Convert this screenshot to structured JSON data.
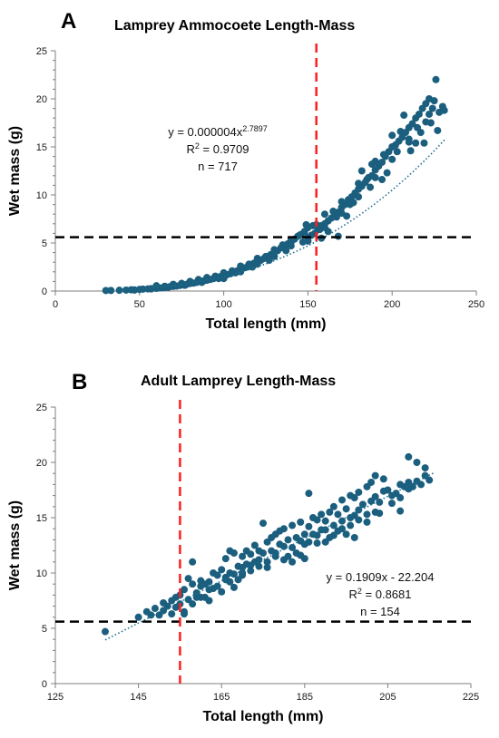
{
  "colors": {
    "points": "#1b5e7e",
    "trend": "#1b6f8f",
    "red_line": "#ff1f1f",
    "black_line": "#000000",
    "axis": "#7f7f7f"
  },
  "chart_data": [
    {
      "panel": "A",
      "type": "scatter",
      "title": "Lamprey Ammocoete Length-Mass",
      "xlabel": "Total length (mm)",
      "ylabel": "Wet mass (g)",
      "xlim": [
        0,
        250
      ],
      "ylim": [
        0,
        25
      ],
      "xticks": [
        0,
        50,
        100,
        150,
        200,
        250
      ],
      "yticks": [
        0,
        5,
        10,
        15,
        20,
        25
      ],
      "grid": false,
      "trendline": {
        "type": "power",
        "a": 4e-06,
        "b": 2.7897,
        "x_range": [
          30,
          232
        ],
        "style": "dotted"
      },
      "equation": {
        "base": "y = 0.000004x",
        "exponent": "2.7897"
      },
      "r2": {
        "prefix": "R",
        "sup": "2",
        "suffix": " = 0.9709"
      },
      "n_label": "n = 717",
      "vline_x": 155,
      "hline_y": 5.6,
      "points": [
        [
          30,
          0.05
        ],
        [
          33,
          0.06
        ],
        [
          38,
          0.08
        ],
        [
          42,
          0.1
        ],
        [
          45,
          0.13
        ],
        [
          47,
          0.12
        ],
        [
          50,
          0.16
        ],
        [
          52,
          0.2
        ],
        [
          55,
          0.22
        ],
        [
          57,
          0.25
        ],
        [
          60,
          0.28
        ],
        [
          62,
          0.32
        ],
        [
          64,
          0.35
        ],
        [
          66,
          0.4
        ],
        [
          68,
          0.45
        ],
        [
          70,
          0.48
        ],
        [
          72,
          0.52
        ],
        [
          74,
          0.58
        ],
        [
          76,
          0.63
        ],
        [
          78,
          0.7
        ],
        [
          80,
          0.78
        ],
        [
          82,
          0.82
        ],
        [
          84,
          0.9
        ],
        [
          86,
          0.98
        ],
        [
          88,
          1.05
        ],
        [
          90,
          1.12
        ],
        [
          92,
          1.2
        ],
        [
          94,
          1.3
        ],
        [
          96,
          1.4
        ],
        [
          98,
          1.5
        ],
        [
          100,
          1.6
        ],
        [
          102,
          1.7
        ],
        [
          104,
          1.8
        ],
        [
          106,
          1.95
        ],
        [
          108,
          2.1
        ],
        [
          110,
          2.25
        ],
        [
          112,
          2.4
        ],
        [
          114,
          2.5
        ],
        [
          116,
          2.7
        ],
        [
          118,
          2.9
        ],
        [
          120,
          3.05
        ],
        [
          122,
          3.2
        ],
        [
          124,
          3.4
        ],
        [
          126,
          3.6
        ],
        [
          128,
          3.8
        ],
        [
          130,
          4.0
        ],
        [
          132,
          4.2
        ],
        [
          134,
          4.5
        ],
        [
          136,
          4.7
        ],
        [
          138,
          4.9
        ],
        [
          140,
          5.1
        ],
        [
          142,
          5.4
        ],
        [
          144,
          5.7
        ],
        [
          146,
          5.9
        ],
        [
          148,
          6.2
        ],
        [
          150,
          5.6
        ],
        [
          152,
          5.8
        ],
        [
          154,
          6.0
        ],
        [
          156,
          6.4
        ],
        [
          158,
          6.8
        ],
        [
          160,
          7.0
        ],
        [
          162,
          7.3
        ],
        [
          164,
          7.6
        ],
        [
          166,
          8.0
        ],
        [
          168,
          8.2
        ],
        [
          170,
          8.7
        ],
        [
          172,
          9.0
        ],
        [
          174,
          9.5
        ],
        [
          176,
          9.8
        ],
        [
          178,
          10.2
        ],
        [
          180,
          10.6
        ],
        [
          182,
          10.9
        ],
        [
          184,
          11.3
        ],
        [
          186,
          11.8
        ],
        [
          188,
          12.0
        ],
        [
          190,
          12.6
        ],
        [
          192,
          13.0
        ],
        [
          194,
          13.4
        ],
        [
          196,
          14.0
        ],
        [
          198,
          14.5
        ],
        [
          200,
          15.0
        ],
        [
          202,
          15.2
        ],
        [
          204,
          15.6
        ],
        [
          206,
          16.0
        ],
        [
          208,
          16.5
        ],
        [
          210,
          17.0
        ],
        [
          212,
          17.4
        ],
        [
          214,
          18.0
        ],
        [
          216,
          18.4
        ],
        [
          218,
          19.0
        ],
        [
          220,
          19.5
        ],
        [
          222,
          20.0
        ],
        [
          224,
          19.0
        ],
        [
          226,
          22.0
        ],
        [
          228,
          18.6
        ],
        [
          230,
          19.2
        ],
        [
          231,
          18.8
        ],
        [
          60,
          0.55
        ],
        [
          65,
          0.5
        ],
        [
          70,
          0.7
        ],
        [
          75,
          0.8
        ],
        [
          80,
          1.0
        ],
        [
          85,
          1.2
        ],
        [
          90,
          1.4
        ],
        [
          95,
          1.55
        ],
        [
          100,
          1.9
        ],
        [
          105,
          2.1
        ],
        [
          110,
          2.6
        ],
        [
          115,
          2.8
        ],
        [
          120,
          3.4
        ],
        [
          125,
          3.6
        ],
        [
          130,
          4.3
        ],
        [
          135,
          4.8
        ],
        [
          140,
          5.3
        ],
        [
          145,
          5.8
        ],
        [
          150,
          6.6
        ],
        [
          155,
          6.9
        ],
        [
          160,
          8.0
        ],
        [
          165,
          8.3
        ],
        [
          170,
          9.3
        ],
        [
          175,
          9.0
        ],
        [
          180,
          11.2
        ],
        [
          185,
          11.6
        ],
        [
          190,
          13.5
        ],
        [
          195,
          14.2
        ],
        [
          200,
          16.2
        ],
        [
          205,
          16.6
        ],
        [
          210,
          15.8
        ],
        [
          215,
          17.0
        ],
        [
          219,
          15.4
        ],
        [
          223,
          17.5
        ],
        [
          227,
          16.7
        ],
        [
          100,
          1.3
        ],
        [
          110,
          2.0
        ],
        [
          120,
          2.8
        ],
        [
          130,
          3.6
        ],
        [
          140,
          4.7
        ],
        [
          150,
          5.2
        ],
        [
          160,
          6.6
        ],
        [
          170,
          8.1
        ],
        [
          180,
          9.8
        ],
        [
          190,
          11.8
        ],
        [
          200,
          13.7
        ],
        [
          210,
          15.5
        ],
        [
          220,
          17.6
        ],
        [
          207,
          18.3
        ],
        [
          197,
          12.3
        ],
        [
          187,
          10.8
        ],
        [
          177,
          9.2
        ],
        [
          167,
          7.7
        ],
        [
          157,
          6.4
        ],
        [
          147,
          5.1
        ],
        [
          137,
          4.2
        ],
        [
          127,
          3.2
        ],
        [
          117,
          2.5
        ],
        [
          107,
          1.9
        ],
        [
          97,
          1.3
        ],
        [
          87,
          0.9
        ],
        [
          77,
          0.6
        ],
        [
          67,
          0.38
        ],
        [
          57,
          0.22
        ],
        [
          47,
          0.1
        ],
        [
          153,
          6.8
        ],
        [
          149,
          6.9
        ],
        [
          158,
          5.5
        ],
        [
          162,
          6.2
        ],
        [
          168,
          5.7
        ],
        [
          173,
          7.8
        ],
        [
          182,
          12.5
        ],
        [
          188,
          13.2
        ],
        [
          194,
          11.6
        ],
        [
          203,
          14.5
        ],
        [
          211,
          14.6
        ],
        [
          214,
          15.4
        ],
        [
          217,
          16.5
        ],
        [
          222,
          18.4
        ],
        [
          225,
          19.8
        ]
      ]
    },
    {
      "panel": "B",
      "type": "scatter",
      "title": "Adult Lamprey Length-Mass",
      "xlabel": "Total length (mm)",
      "ylabel": "Wet mass (g)",
      "xlim": [
        125,
        225
      ],
      "ylim": [
        0,
        25
      ],
      "xticks": [
        125,
        145,
        165,
        185,
        205,
        225
      ],
      "yticks": [
        0,
        5,
        10,
        15,
        20,
        25
      ],
      "grid": false,
      "trendline": {
        "type": "linear",
        "slope": 0.1909,
        "intercept": -22.204,
        "x_range": [
          137,
          216
        ],
        "style": "dotted"
      },
      "equation": {
        "text": "y = 0.1909x - 22.204"
      },
      "r2": {
        "prefix": "R",
        "sup": "2",
        "suffix": " = 0.8681"
      },
      "n_label": "n = 154",
      "vline_x": 155,
      "hline_y": 5.6,
      "points": [
        [
          137,
          4.7
        ],
        [
          145,
          6.0
        ],
        [
          147,
          6.5
        ],
        [
          149,
          6.8
        ],
        [
          150,
          6.2
        ],
        [
          151,
          7.3
        ],
        [
          152,
          7.0
        ],
        [
          153,
          7.5
        ],
        [
          153,
          6.3
        ],
        [
          154,
          7.8
        ],
        [
          154,
          6.9
        ],
        [
          155,
          7.2
        ],
        [
          155,
          8.0
        ],
        [
          156,
          8.5
        ],
        [
          156,
          6.5
        ],
        [
          157,
          7.6
        ],
        [
          157,
          9.5
        ],
        [
          158,
          9.0
        ],
        [
          158,
          11.0
        ],
        [
          159,
          8.2
        ],
        [
          159,
          7.8
        ],
        [
          160,
          9.3
        ],
        [
          160,
          8.8
        ],
        [
          161,
          9.0
        ],
        [
          161,
          7.8
        ],
        [
          162,
          9.2
        ],
        [
          162,
          8.5
        ],
        [
          163,
          8.6
        ],
        [
          163,
          10.0
        ],
        [
          164,
          8.8
        ],
        [
          164,
          9.8
        ],
        [
          165,
          8.3
        ],
        [
          165,
          10.3
        ],
        [
          166,
          9.6
        ],
        [
          166,
          11.3
        ],
        [
          167,
          10.0
        ],
        [
          167,
          9.2
        ],
        [
          168,
          9.9
        ],
        [
          168,
          11.8
        ],
        [
          169,
          10.6
        ],
        [
          169,
          9.4
        ],
        [
          170,
          11.5
        ],
        [
          170,
          10.5
        ],
        [
          171,
          12.0
        ],
        [
          171,
          10.8
        ],
        [
          172,
          11.7
        ],
        [
          172,
          10.2
        ],
        [
          173,
          11.0
        ],
        [
          173,
          12.5
        ],
        [
          174,
          12.0
        ],
        [
          174,
          10.6
        ],
        [
          175,
          14.5
        ],
        [
          175,
          11.8
        ],
        [
          176,
          12.8
        ],
        [
          176,
          11.0
        ],
        [
          177,
          13.2
        ],
        [
          177,
          12.0
        ],
        [
          178,
          11.5
        ],
        [
          178,
          13.5
        ],
        [
          179,
          12.6
        ],
        [
          179,
          13.8
        ],
        [
          180,
          14.0
        ],
        [
          180,
          12.4
        ],
        [
          181,
          11.5
        ],
        [
          181,
          13.0
        ],
        [
          182,
          12.3
        ],
        [
          182,
          14.3
        ],
        [
          183,
          13.2
        ],
        [
          183,
          11.8
        ],
        [
          184,
          12.9
        ],
        [
          184,
          14.6
        ],
        [
          185,
          13.5
        ],
        [
          185,
          12.6
        ],
        [
          186,
          17.2
        ],
        [
          186,
          14.2
        ],
        [
          187,
          15.0
        ],
        [
          187,
          13.5
        ],
        [
          188,
          14.8
        ],
        [
          188,
          12.7
        ],
        [
          189,
          13.9
        ],
        [
          189,
          15.3
        ],
        [
          190,
          14.7
        ],
        [
          190,
          12.8
        ],
        [
          191,
          13.2
        ],
        [
          191,
          15.5
        ],
        [
          192,
          16.0
        ],
        [
          192,
          14.3
        ],
        [
          193,
          15.3
        ],
        [
          193,
          13.8
        ],
        [
          194,
          16.6
        ],
        [
          194,
          14.7
        ],
        [
          195,
          15.8
        ],
        [
          195,
          13.5
        ],
        [
          196,
          17.0
        ],
        [
          196,
          15.0
        ],
        [
          197,
          15.2
        ],
        [
          197,
          16.8
        ],
        [
          198,
          14.8
        ],
        [
          198,
          17.3
        ],
        [
          199,
          16.2
        ],
        [
          200,
          15.3
        ],
        [
          200,
          17.8
        ],
        [
          201,
          16.5
        ],
        [
          201,
          18.2
        ],
        [
          202,
          15.5
        ],
        [
          202,
          18.8
        ],
        [
          203,
          16.4
        ],
        [
          204,
          18.5
        ],
        [
          205,
          17.5
        ],
        [
          206,
          16.3
        ],
        [
          207,
          17.2
        ],
        [
          208,
          15.6
        ],
        [
          208,
          18.0
        ],
        [
          209,
          17.8
        ],
        [
          210,
          20.5
        ],
        [
          210,
          18.2
        ],
        [
          211,
          17.8
        ],
        [
          212,
          20.0
        ],
        [
          213,
          18.0
        ],
        [
          214,
          19.5
        ],
        [
          215,
          18.4
        ],
        [
          156,
          6.3
        ],
        [
          158,
          7.2
        ],
        [
          160,
          7.8
        ],
        [
          162,
          7.5
        ],
        [
          148,
          6.2
        ],
        [
          151,
          6.6
        ],
        [
          166,
          9.4
        ],
        [
          168,
          8.7
        ],
        [
          170,
          9.8
        ],
        [
          172,
          10.7
        ],
        [
          174,
          11.2
        ],
        [
          176,
          10.5
        ],
        [
          178,
          11.8
        ],
        [
          180,
          11.2
        ],
        [
          182,
          11.0
        ],
        [
          184,
          11.6
        ],
        [
          186,
          12.8
        ],
        [
          188,
          13.4
        ],
        [
          190,
          13.9
        ],
        [
          192,
          13.4
        ],
        [
          194,
          14.0
        ],
        [
          196,
          14.3
        ],
        [
          198,
          15.7
        ],
        [
          200,
          14.6
        ],
        [
          202,
          16.9
        ],
        [
          204,
          17.4
        ],
        [
          206,
          17.0
        ],
        [
          208,
          16.8
        ],
        [
          210,
          17.6
        ],
        [
          212,
          18.3
        ],
        [
          214,
          18.8
        ],
        [
          167,
          12.0
        ],
        [
          170,
          10.0
        ],
        [
          185,
          11.3
        ],
        [
          197,
          13.2
        ],
        [
          203,
          15.4
        ]
      ]
    }
  ]
}
